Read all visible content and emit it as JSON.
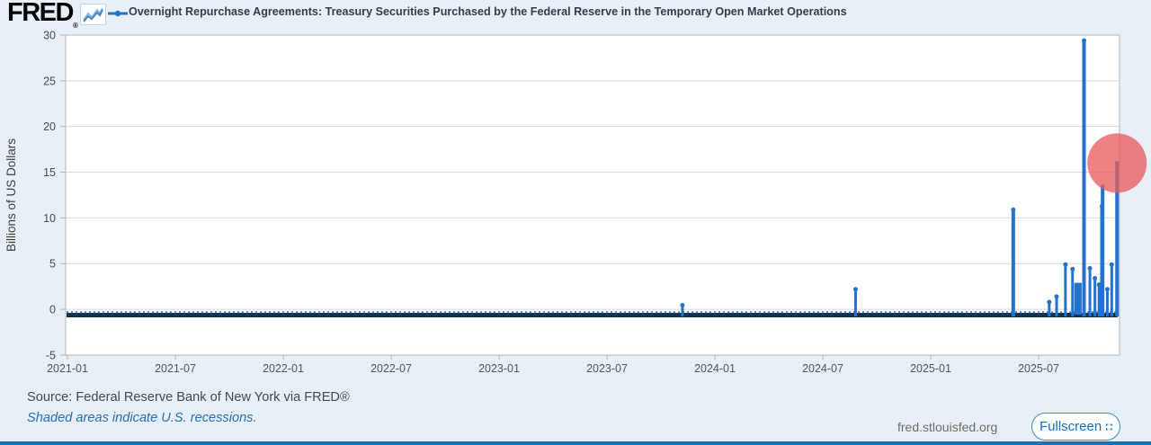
{
  "header": {
    "logo": "FRED",
    "logo_registered": "®",
    "series_title": "Overnight Repurchase Agreements: Treasury Securities Purchased by the Federal Reserve in the Temporary Open Market Operations"
  },
  "footer": {
    "source": "Source: Federal Reserve Bank of New York via FRED®",
    "recession_note": "Shaded areas indicate U.S. recessions.",
    "site": "fred.stlouisfed.org",
    "fullscreen_label": "Fullscreen"
  },
  "colors": {
    "line_blue": "#2272ce",
    "baseline_dark": "#13304f",
    "baseline_dots": "#3b82d4",
    "page_background": "#e8f0f7",
    "plot_background": "#ffffff",
    "plot_border": "#b3b3b3",
    "gridline": "#d9d9d9",
    "axis_text": "#4a4a4a",
    "highlight_pink": "rgba(232,93,97,0.78)",
    "button_blue": "#1074bc",
    "bottom_bar_blue": "#1173bc"
  },
  "chart_data": {
    "type": "line",
    "title": "Overnight Repurchase Agreements: Treasury Securities Purchased by the Federal Reserve in the Temporary Open Market Operations",
    "ylabel": "Billions of US Dollars",
    "ylim": [
      -5,
      30
    ],
    "yticks": [
      30,
      25,
      20,
      15,
      10,
      5,
      0,
      -5
    ],
    "xticks": [
      "2021-01",
      "2021-07",
      "2022-01",
      "2022-07",
      "2023-01",
      "2023-07",
      "2024-01",
      "2024-07",
      "2025-01",
      "2025-07"
    ],
    "grid": true,
    "legend_position": "top",
    "baseline": {
      "start": "2021-01-01",
      "end": "2025-11-13",
      "value": 0
    },
    "spikes": [
      {
        "date": "2023-11-07",
        "value": 0.45
      },
      {
        "date": "2024-08-26",
        "value": 2.2
      },
      {
        "date": "2025-05-19",
        "value": 10.9
      },
      {
        "date": "2025-07-19",
        "value": 0.8
      },
      {
        "date": "2025-08-01",
        "value": 1.4
      },
      {
        "date": "2025-08-16",
        "value": 4.9
      },
      {
        "date": "2025-08-28",
        "value": 4.4
      },
      {
        "date": "2025-09-17",
        "value": 29.4
      },
      {
        "date": "2025-09-27",
        "value": 4.5
      },
      {
        "date": "2025-10-05",
        "value": 3.4
      },
      {
        "date": "2025-10-12",
        "value": 2.7
      },
      {
        "date": "2025-10-17",
        "value": 11.3
      },
      {
        "date": "2025-10-18",
        "value": 13.4
      },
      {
        "date": "2025-10-26",
        "value": 2.2
      },
      {
        "date": "2025-11-03",
        "value": 4.9
      },
      {
        "date": "2025-11-12",
        "value": 16.0
      }
    ],
    "cluster": {
      "start": "2025-08-31",
      "end": "2025-09-13",
      "value": 2.9
    },
    "highlight_point": {
      "date": "2025-11-12",
      "value": 16.0
    }
  }
}
